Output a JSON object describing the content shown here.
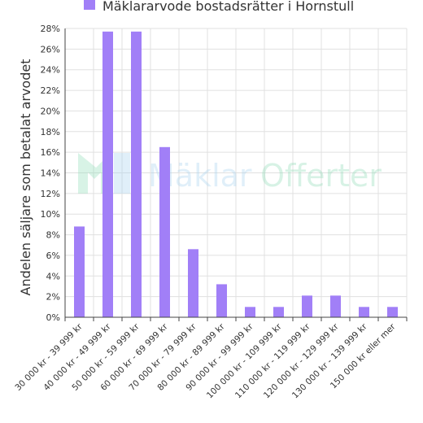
{
  "chart_data": {
    "type": "bar",
    "legend": {
      "label": "Mäklararvode bostadsrätter i Hornstull",
      "position": "top-center"
    },
    "ylabel": "Andelen säljare som betalat arvodet",
    "xlabel": "",
    "ylim": [
      0,
      28
    ],
    "ytick_step": 2,
    "yticks": [
      "0%",
      "2%",
      "4%",
      "6%",
      "8%",
      "10%",
      "12%",
      "14%",
      "16%",
      "18%",
      "20%",
      "22%",
      "24%",
      "26%",
      "28%"
    ],
    "grid": true,
    "categories": [
      "30 000 kr - 39 999 kr",
      "40 000 kr - 49 999 kr",
      "50 000 kr - 59 999 kr",
      "60 000 kr - 69 999 kr",
      "70 000 kr - 79 999 kr",
      "80 000 kr - 89 999 kr",
      "90 000 kr - 99 999 kr",
      "100 000 kr - 109 999 kr",
      "110 000 kr - 119 999 kr",
      "120 000 kr - 129 999 kr",
      "130 000 kr - 139 999 kr",
      "150 000 kr eller mer"
    ],
    "values": [
      8.8,
      27.7,
      27.7,
      16.5,
      6.6,
      3.2,
      1.0,
      1.0,
      2.1,
      2.1,
      1.0,
      1.0
    ],
    "colors": {
      "bar": "#a17ff7",
      "grid": "#e0e0e0",
      "axis": "#444444",
      "text": "#333333",
      "watermark_a": "#8fdcb7",
      "watermark_b": "#a9d4ef"
    }
  },
  "watermark": {
    "part1": "Mäklar",
    "part2": "Offerter"
  }
}
